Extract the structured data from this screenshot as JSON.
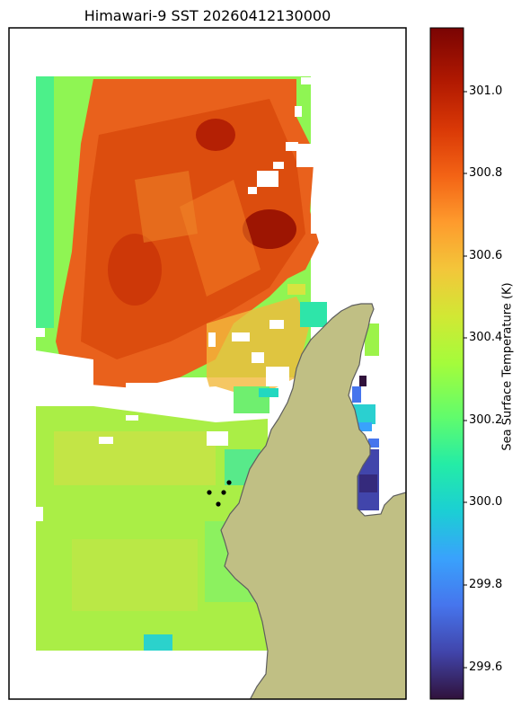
{
  "title": "Himawari-9 SST 20260412130000",
  "colorbar": {
    "label": "Sea Surface Temperature (K)",
    "ticks": [
      "301.0",
      "300.8",
      "300.6",
      "300.4",
      "300.2",
      "300.0",
      "299.8",
      "299.6"
    ],
    "vmin": 299.52,
    "vmax": 301.16,
    "colormap": "turbo"
  },
  "colors": {
    "land": "#c0bf84",
    "coast": "#5e5e5e",
    "frame": "#000000"
  },
  "markers": {
    "count": 4,
    "color": "#000000"
  }
}
